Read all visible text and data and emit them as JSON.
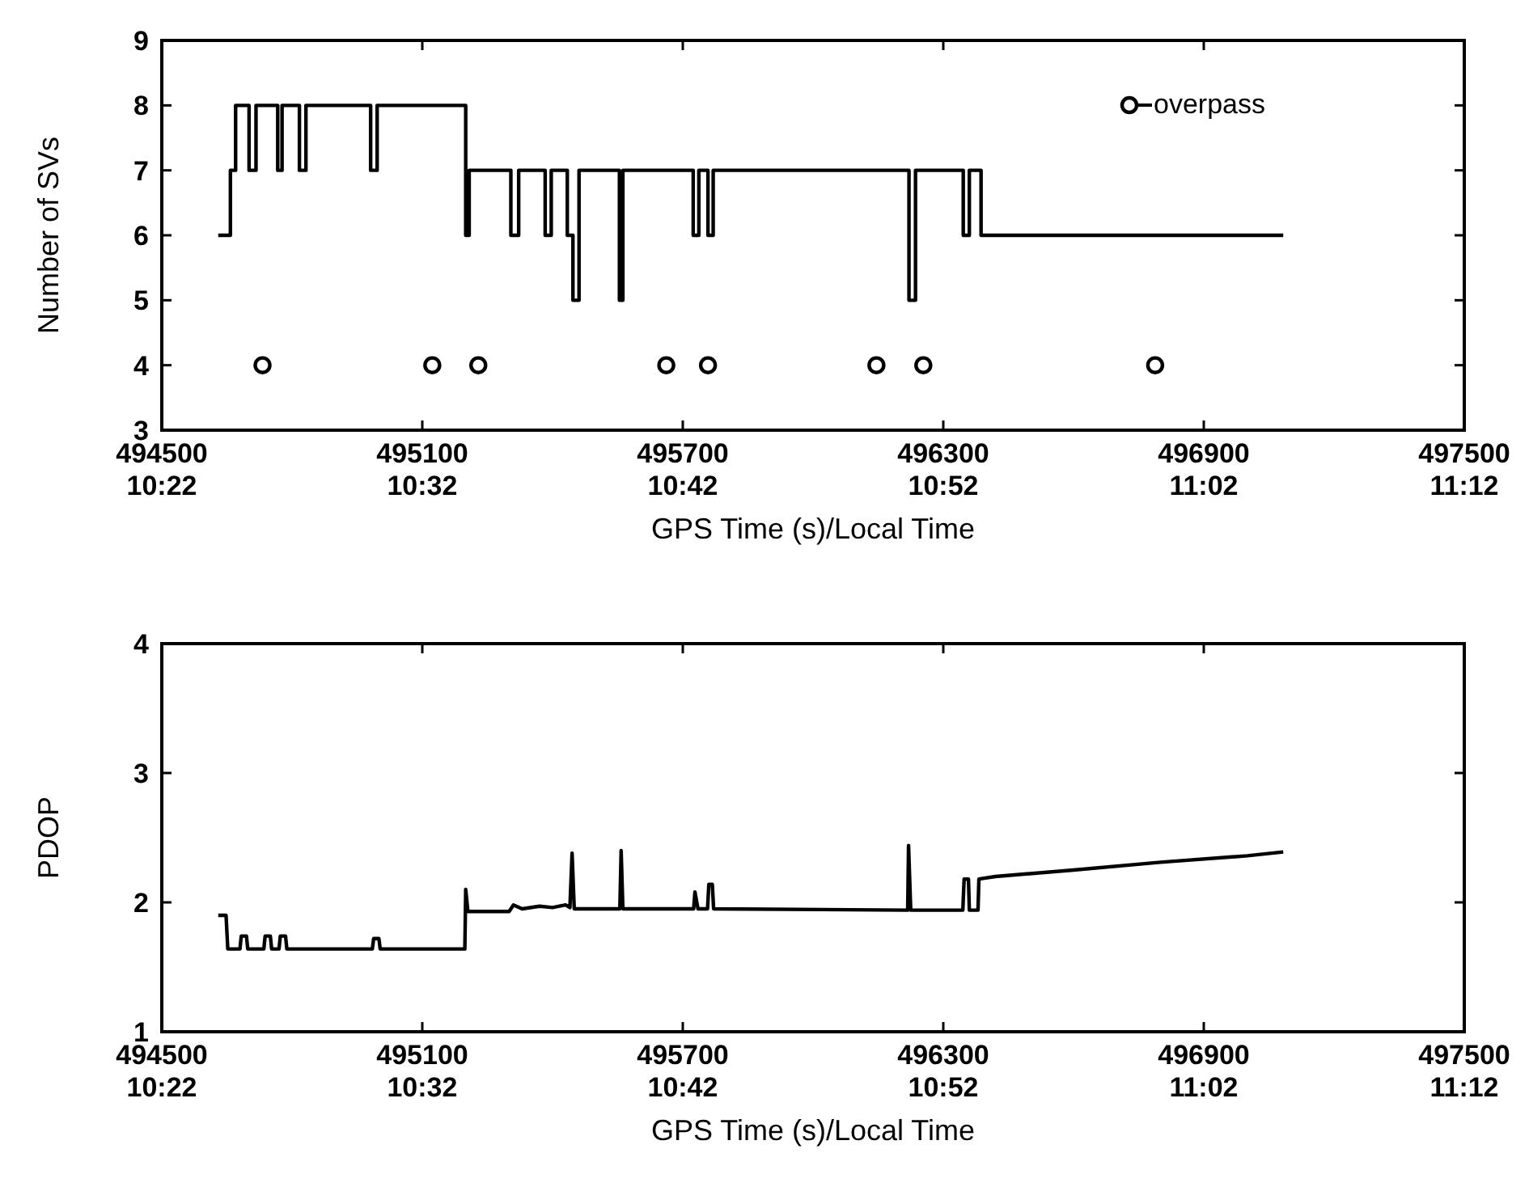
{
  "chart_data": [
    {
      "type": "step",
      "xlabel": "GPS Time (s)/Local Time",
      "ylabel": "Number of SVs",
      "xlim": [
        494500,
        497500
      ],
      "xticks": [
        494500,
        495100,
        495700,
        496300,
        496900,
        497500
      ],
      "x2lim": [
        10.3667,
        11.2
      ],
      "x2ticks": [
        {
          "value": 10.3667,
          "label": "10:22"
        },
        {
          "value": 10.5333,
          "label": "10:32"
        },
        {
          "value": 10.7,
          "label": "10:42"
        },
        {
          "value": 10.8667,
          "label": "10:52"
        },
        {
          "value": 11.0333,
          "label": "11:02"
        },
        {
          "value": 11.2,
          "label": "11:12"
        }
      ],
      "ylim": [
        3,
        9
      ],
      "yticks": [
        3,
        4,
        5,
        6,
        7,
        8,
        9
      ],
      "grid": false,
      "legend": "top right",
      "series": [
        {
          "color": "#000000",
          "x": [
            494630,
            494658,
            494670,
            494701,
            494717,
            494767,
            494777,
            494817,
            494832,
            494981,
            494996,
            495200,
            495208,
            495304,
            495322,
            495383,
            495397,
            495434,
            495447,
            495461,
            495554,
            495562,
            495724,
            495737,
            495758,
            495770,
            496221,
            496236,
            496346,
            496360,
            496387,
            497083
          ],
          "values": [
            6,
            7,
            8,
            7,
            8,
            7,
            8,
            7,
            8,
            7,
            8,
            6,
            7,
            6,
            7,
            6,
            7,
            6,
            5,
            7,
            5,
            7,
            6,
            7,
            6,
            7,
            5,
            7,
            6,
            7,
            6,
            6
          ]
        },
        {
          "type": "scatter",
          "name": "overpass",
          "color": "#000000",
          "marker": "circle",
          "x": [
            494732,
            495123,
            495229,
            495662,
            495758,
            496146,
            496254,
            496788
          ],
          "values": [
            4,
            4,
            4,
            4,
            4,
            4,
            4,
            4
          ]
        }
      ]
    },
    {
      "type": "line",
      "xlabel": "GPS Time (s)/Local Time",
      "ylabel": "PDOP",
      "xlim": [
        494500,
        497500
      ],
      "xticks": [
        494500,
        495100,
        495700,
        496300,
        496900,
        497500
      ],
      "x2lim": [
        10.3667,
        11.2
      ],
      "x2ticks": [
        {
          "value": 10.3667,
          "label": "10:22"
        },
        {
          "value": 10.5333,
          "label": "10:32"
        },
        {
          "value": 10.7,
          "label": "10:42"
        },
        {
          "value": 10.8667,
          "label": "10:52"
        },
        {
          "value": 11.0333,
          "label": "11:02"
        },
        {
          "value": 11.2,
          "label": "11:12"
        }
      ],
      "ylim": [
        1,
        4
      ],
      "yticks": [
        1,
        2,
        3,
        4
      ],
      "grid": false,
      "series": [
        {
          "color": "#000000",
          "x": [
            494630,
            494648,
            494652,
            494680,
            494683,
            494695,
            494698,
            494735,
            494738,
            494750,
            494753,
            494770,
            494773,
            494785,
            494788,
            494985,
            494988,
            495000,
            495003,
            495198,
            495200,
            495205,
            495300,
            495310,
            495330,
            495370,
            495400,
            495430,
            495440,
            495445,
            495450,
            495555,
            495558,
            495562,
            495725,
            495728,
            495735,
            495757,
            495760,
            495768,
            495771,
            496218,
            496220,
            496225,
            496345,
            496348,
            496358,
            496360,
            496380,
            496382,
            496420,
            496600,
            496800,
            497000,
            497083
          ],
          "values": [
            1.9,
            1.9,
            1.64,
            1.64,
            1.74,
            1.74,
            1.64,
            1.64,
            1.74,
            1.74,
            1.64,
            1.64,
            1.74,
            1.74,
            1.64,
            1.64,
            1.72,
            1.72,
            1.64,
            1.64,
            2.1,
            1.93,
            1.93,
            1.98,
            1.95,
            1.97,
            1.96,
            1.98,
            1.96,
            2.38,
            1.95,
            1.95,
            2.4,
            1.95,
            1.95,
            2.08,
            1.95,
            1.95,
            2.14,
            2.14,
            1.95,
            1.94,
            2.44,
            1.94,
            1.94,
            2.18,
            2.18,
            1.94,
            1.94,
            2.18,
            2.2,
            2.25,
            2.31,
            2.36,
            2.39
          ]
        }
      ]
    }
  ]
}
